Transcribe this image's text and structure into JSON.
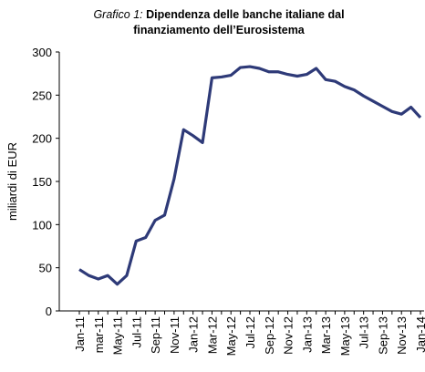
{
  "chart_data": {
    "type": "line",
    "title_label": "Grafico 1:",
    "title_lines": [
      "Dipendenza delle banche italiane dal",
      "finanziamento dell’Eurosistema"
    ],
    "y_label": "miliardi di EUR",
    "categories": [
      "Jan-11",
      null,
      "mar-11",
      null,
      "May-11",
      null,
      "Jul-11",
      null,
      "Sep-11",
      null,
      "Nov-11",
      null,
      "Jan-12",
      null,
      "Mar-12",
      null,
      "May-12",
      null,
      "Jul-12",
      null,
      "Sep-12",
      null,
      "Nov-12",
      null,
      "Jan-13",
      null,
      "Mar-13",
      null,
      "May-13",
      null,
      "Jul-13",
      null,
      "Sep-13",
      null,
      "Nov-13",
      null,
      "Jan-14"
    ],
    "series": [
      {
        "color": "#2e3a78",
        "values": [
          48,
          41,
          37,
          41,
          31,
          41,
          81,
          85,
          105,
          111,
          153,
          210,
          203,
          195,
          270,
          271,
          273,
          282,
          283,
          281,
          277,
          277,
          274,
          272,
          274,
          281,
          268,
          266,
          260,
          256,
          249,
          243,
          237,
          231,
          228,
          236,
          224
        ]
      }
    ],
    "ylim": [
      0,
      300
    ],
    "yticks": [
      0,
      50,
      100,
      150,
      200,
      250,
      300
    ],
    "grid": false
  }
}
